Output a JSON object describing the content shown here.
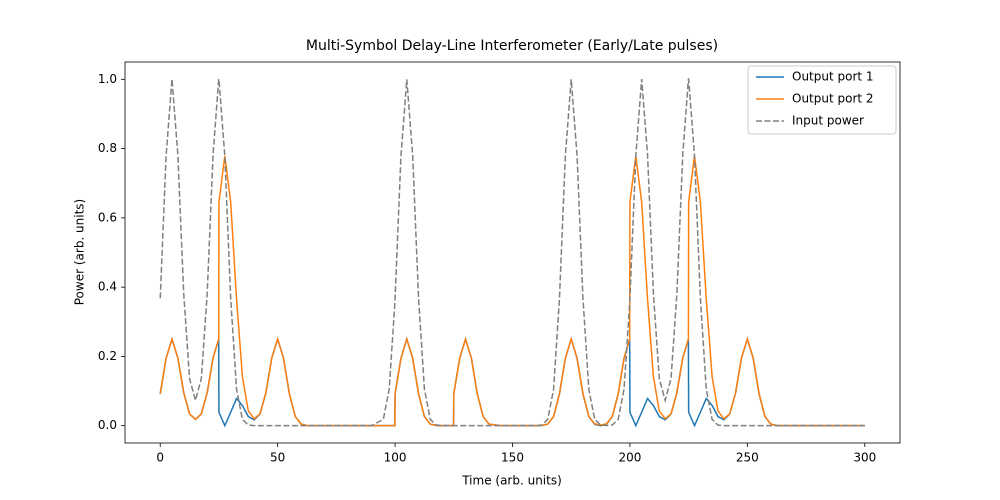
{
  "chart_data": {
    "type": "line",
    "title": "Multi-Symbol Delay-Line Interferometer (Early/Late pulses)",
    "x_label": "Time (arb. units)",
    "y_label": "Power (arb. units)",
    "xlim": [
      -15,
      315
    ],
    "ylim": [
      -0.05,
      1.05
    ],
    "xticks": [
      0,
      50,
      100,
      150,
      200,
      250,
      300
    ],
    "yticks": [
      {
        "value": 0,
        "label": "0.0"
      },
      0.2,
      0.4,
      0.6,
      0.8,
      {
        "value": 1,
        "label": "1.0"
      }
    ],
    "grid": false,
    "legend": "upper right",
    "x": [
      0,
      2.5,
      5,
      7.5,
      10,
      12.5,
      15,
      17.5,
      20,
      22.5,
      24.9,
      25,
      27.5,
      30,
      32.5,
      35,
      37.5,
      40,
      42.5,
      45,
      47.5,
      50,
      52.5,
      55,
      57.5,
      60,
      62.5,
      65,
      70,
      75,
      80,
      85,
      90,
      95,
      97.5,
      99.9,
      100,
      102.5,
      105,
      107.5,
      110,
      112.5,
      115,
      117.5,
      120,
      122.5,
      124.9,
      125,
      127.5,
      130,
      132.5,
      135,
      137.5,
      140,
      145,
      150,
      155,
      160,
      162.5,
      165,
      167.5,
      170,
      172.5,
      175,
      177.5,
      180,
      182.5,
      185,
      187.5,
      190,
      192.5,
      195,
      197.5,
      199.9,
      200,
      202.5,
      205,
      207.5,
      210,
      212.5,
      215,
      217.5,
      220,
      222.5,
      224.9,
      225,
      227.5,
      230,
      232.5,
      235,
      237.5,
      240,
      242.5,
      245,
      247.5,
      250,
      252.5,
      255,
      257.5,
      260,
      262.5,
      265,
      270,
      280,
      290,
      300
    ],
    "series": [
      {
        "name": "Output port 1",
        "color": "#1f77b4",
        "linestyle": "solid",
        "values": [
          0.092,
          0.1947,
          0.25,
          0.1957,
          0.0954,
          0.034,
          0.0183,
          0.034,
          0.0954,
          0.1957,
          0.25,
          0.0388,
          0,
          0.0388,
          0.0784,
          0.0582,
          0.0264,
          0.0168,
          0.0336,
          0.0954,
          0.1957,
          0.25,
          0.1947,
          0.092,
          0.0264,
          0.0046,
          0.0005,
          0,
          0,
          0,
          0,
          0,
          0,
          0,
          0,
          0,
          0.092,
          0.1947,
          0.25,
          0.1947,
          0.092,
          0.0264,
          0.0046,
          0.0005,
          0,
          0,
          0,
          0.092,
          0.1947,
          0.25,
          0.1947,
          0.092,
          0.0264,
          0.0046,
          0,
          0,
          0,
          0,
          0.0005,
          0.0046,
          0.0264,
          0.092,
          0.1947,
          0.25,
          0.1947,
          0.092,
          0.026,
          0.0039,
          0,
          0.0039,
          0.026,
          0.092,
          0.1947,
          0.25,
          0.0388,
          0,
          0.0388,
          0.0784,
          0.0582,
          0.0264,
          0.0168,
          0.0336,
          0.0954,
          0.1957,
          0.25,
          0.0388,
          0,
          0.0388,
          0.0784,
          0.0582,
          0.0264,
          0.0168,
          0.0336,
          0.0954,
          0.1957,
          0.25,
          0.1947,
          0.092,
          0.0264,
          0.0046,
          0.0005,
          0,
          0,
          0,
          0,
          0
        ]
      },
      {
        "name": "Output port 2",
        "color": "#ff7f0e",
        "linestyle": "solid",
        "values": [
          0.092,
          0.1947,
          0.25,
          0.1957,
          0.0954,
          0.034,
          0.0183,
          0.034,
          0.0954,
          0.1957,
          0.25,
          0.6455,
          0.7788,
          0.6455,
          0.3657,
          0.1417,
          0.0425,
          0.0198,
          0.0344,
          0.0954,
          0.1957,
          0.25,
          0.1947,
          0.092,
          0.0264,
          0.0046,
          0.0005,
          0,
          0,
          0,
          0,
          0,
          0,
          0,
          0,
          0,
          0.092,
          0.1947,
          0.25,
          0.1947,
          0.092,
          0.0264,
          0.0046,
          0.0005,
          0,
          0,
          0,
          0.092,
          0.1947,
          0.25,
          0.1947,
          0.092,
          0.0264,
          0.0046,
          0,
          0,
          0,
          0,
          0.0005,
          0.0046,
          0.0264,
          0.092,
          0.1947,
          0.25,
          0.1947,
          0.092,
          0.0267,
          0.0054,
          0.0019,
          0.0054,
          0.0267,
          0.092,
          0.1947,
          0.25,
          0.6455,
          0.7788,
          0.6455,
          0.3657,
          0.1417,
          0.0425,
          0.0198,
          0.0344,
          0.0954,
          0.1957,
          0.25,
          0.6455,
          0.7788,
          0.6455,
          0.3657,
          0.1417,
          0.0425,
          0.0198,
          0.0344,
          0.0954,
          0.1957,
          0.25,
          0.1947,
          0.092,
          0.0264,
          0.0046,
          0.0005,
          0,
          0,
          0,
          0,
          0
        ]
      },
      {
        "name": "Input power",
        "color": "#808080",
        "linestyle": "dashed",
        "values": [
          0.3679,
          0.7788,
          1.0007,
          0.7827,
          0.3814,
          0.1359,
          0.0732,
          0.1359,
          0.3814,
          0.7827,
          1.0002,
          1.0007,
          0.7789,
          0.3679,
          0.1054,
          0.0183,
          0.0019,
          0.0001,
          0,
          0,
          0,
          0,
          0,
          0,
          0,
          0,
          0,
          0,
          0,
          0,
          0,
          0,
          0.0001,
          0.0183,
          0.1054,
          0.3533,
          0.3679,
          0.7788,
          1,
          0.7788,
          0.3679,
          0.1054,
          0.0183,
          0.0019,
          0.0001,
          0,
          0,
          0,
          0,
          0,
          0,
          0,
          0,
          0,
          0,
          0,
          0,
          0.0001,
          0.0019,
          0.0183,
          0.1054,
          0.3679,
          0.7788,
          1,
          0.7788,
          0.3679,
          0.1054,
          0.0183,
          0.0019,
          0.0005,
          0.0019,
          0.0183,
          0.1054,
          0.3533,
          0.3679,
          0.7789,
          1.0007,
          0.7827,
          0.3814,
          0.1359,
          0.0732,
          0.1359,
          0.3814,
          0.7827,
          1.0002,
          1.0007,
          0.7788,
          0.3679,
          0.1054,
          0.0183,
          0.0019,
          0.0001,
          0,
          0,
          0,
          0,
          0,
          0,
          0,
          0,
          0,
          0,
          0,
          0,
          0,
          0
        ]
      }
    ]
  }
}
